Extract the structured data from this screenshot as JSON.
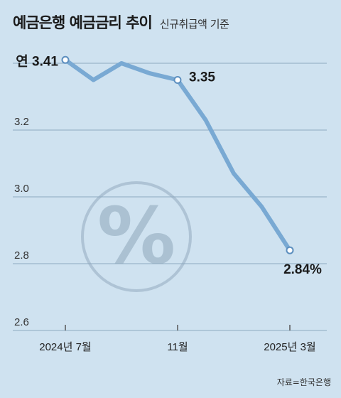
{
  "header": {
    "title": "예금은행 예금금리 추이",
    "subtitle": "신규취급액 기준"
  },
  "source": "자료=한국은행",
  "colors": {
    "background": "#cfe2f0",
    "line": "#79a9d3",
    "grid": "#8ea9bf",
    "watermark": "#9fb7c9"
  },
  "watermark_icon": "percent-icon",
  "chart_data": {
    "type": "line",
    "title": "예금은행 예금금리 추이",
    "subtitle": "신규취급액 기준",
    "xlabel": "",
    "ylabel": "",
    "x": [
      "2024-07",
      "2024-08",
      "2024-09",
      "2024-10",
      "2024-11",
      "2024-12",
      "2025-01",
      "2025-02",
      "2025-03"
    ],
    "x_tick_labels": [
      {
        "x": "2024-07",
        "label": "2024년 7월"
      },
      {
        "x": "2024-11",
        "label": "11월"
      },
      {
        "x": "2025-03",
        "label": "2025년 3월"
      }
    ],
    "y_ticks": [
      "2.6",
      "2.8",
      "3.0",
      "3.2"
    ],
    "ylim": [
      2.6,
      3.5
    ],
    "grid": true,
    "series": [
      {
        "values": [
          3.41,
          3.35,
          3.4,
          3.37,
          3.35,
          3.23,
          3.07,
          2.97,
          2.84
        ]
      }
    ],
    "annotations": [
      {
        "x": "2024-07",
        "label": "연 3.41",
        "position": "left"
      },
      {
        "x": "2024-11",
        "label": "3.35",
        "position": "right"
      },
      {
        "x": "2025-03",
        "label": "2.84%",
        "position": "below"
      }
    ]
  }
}
